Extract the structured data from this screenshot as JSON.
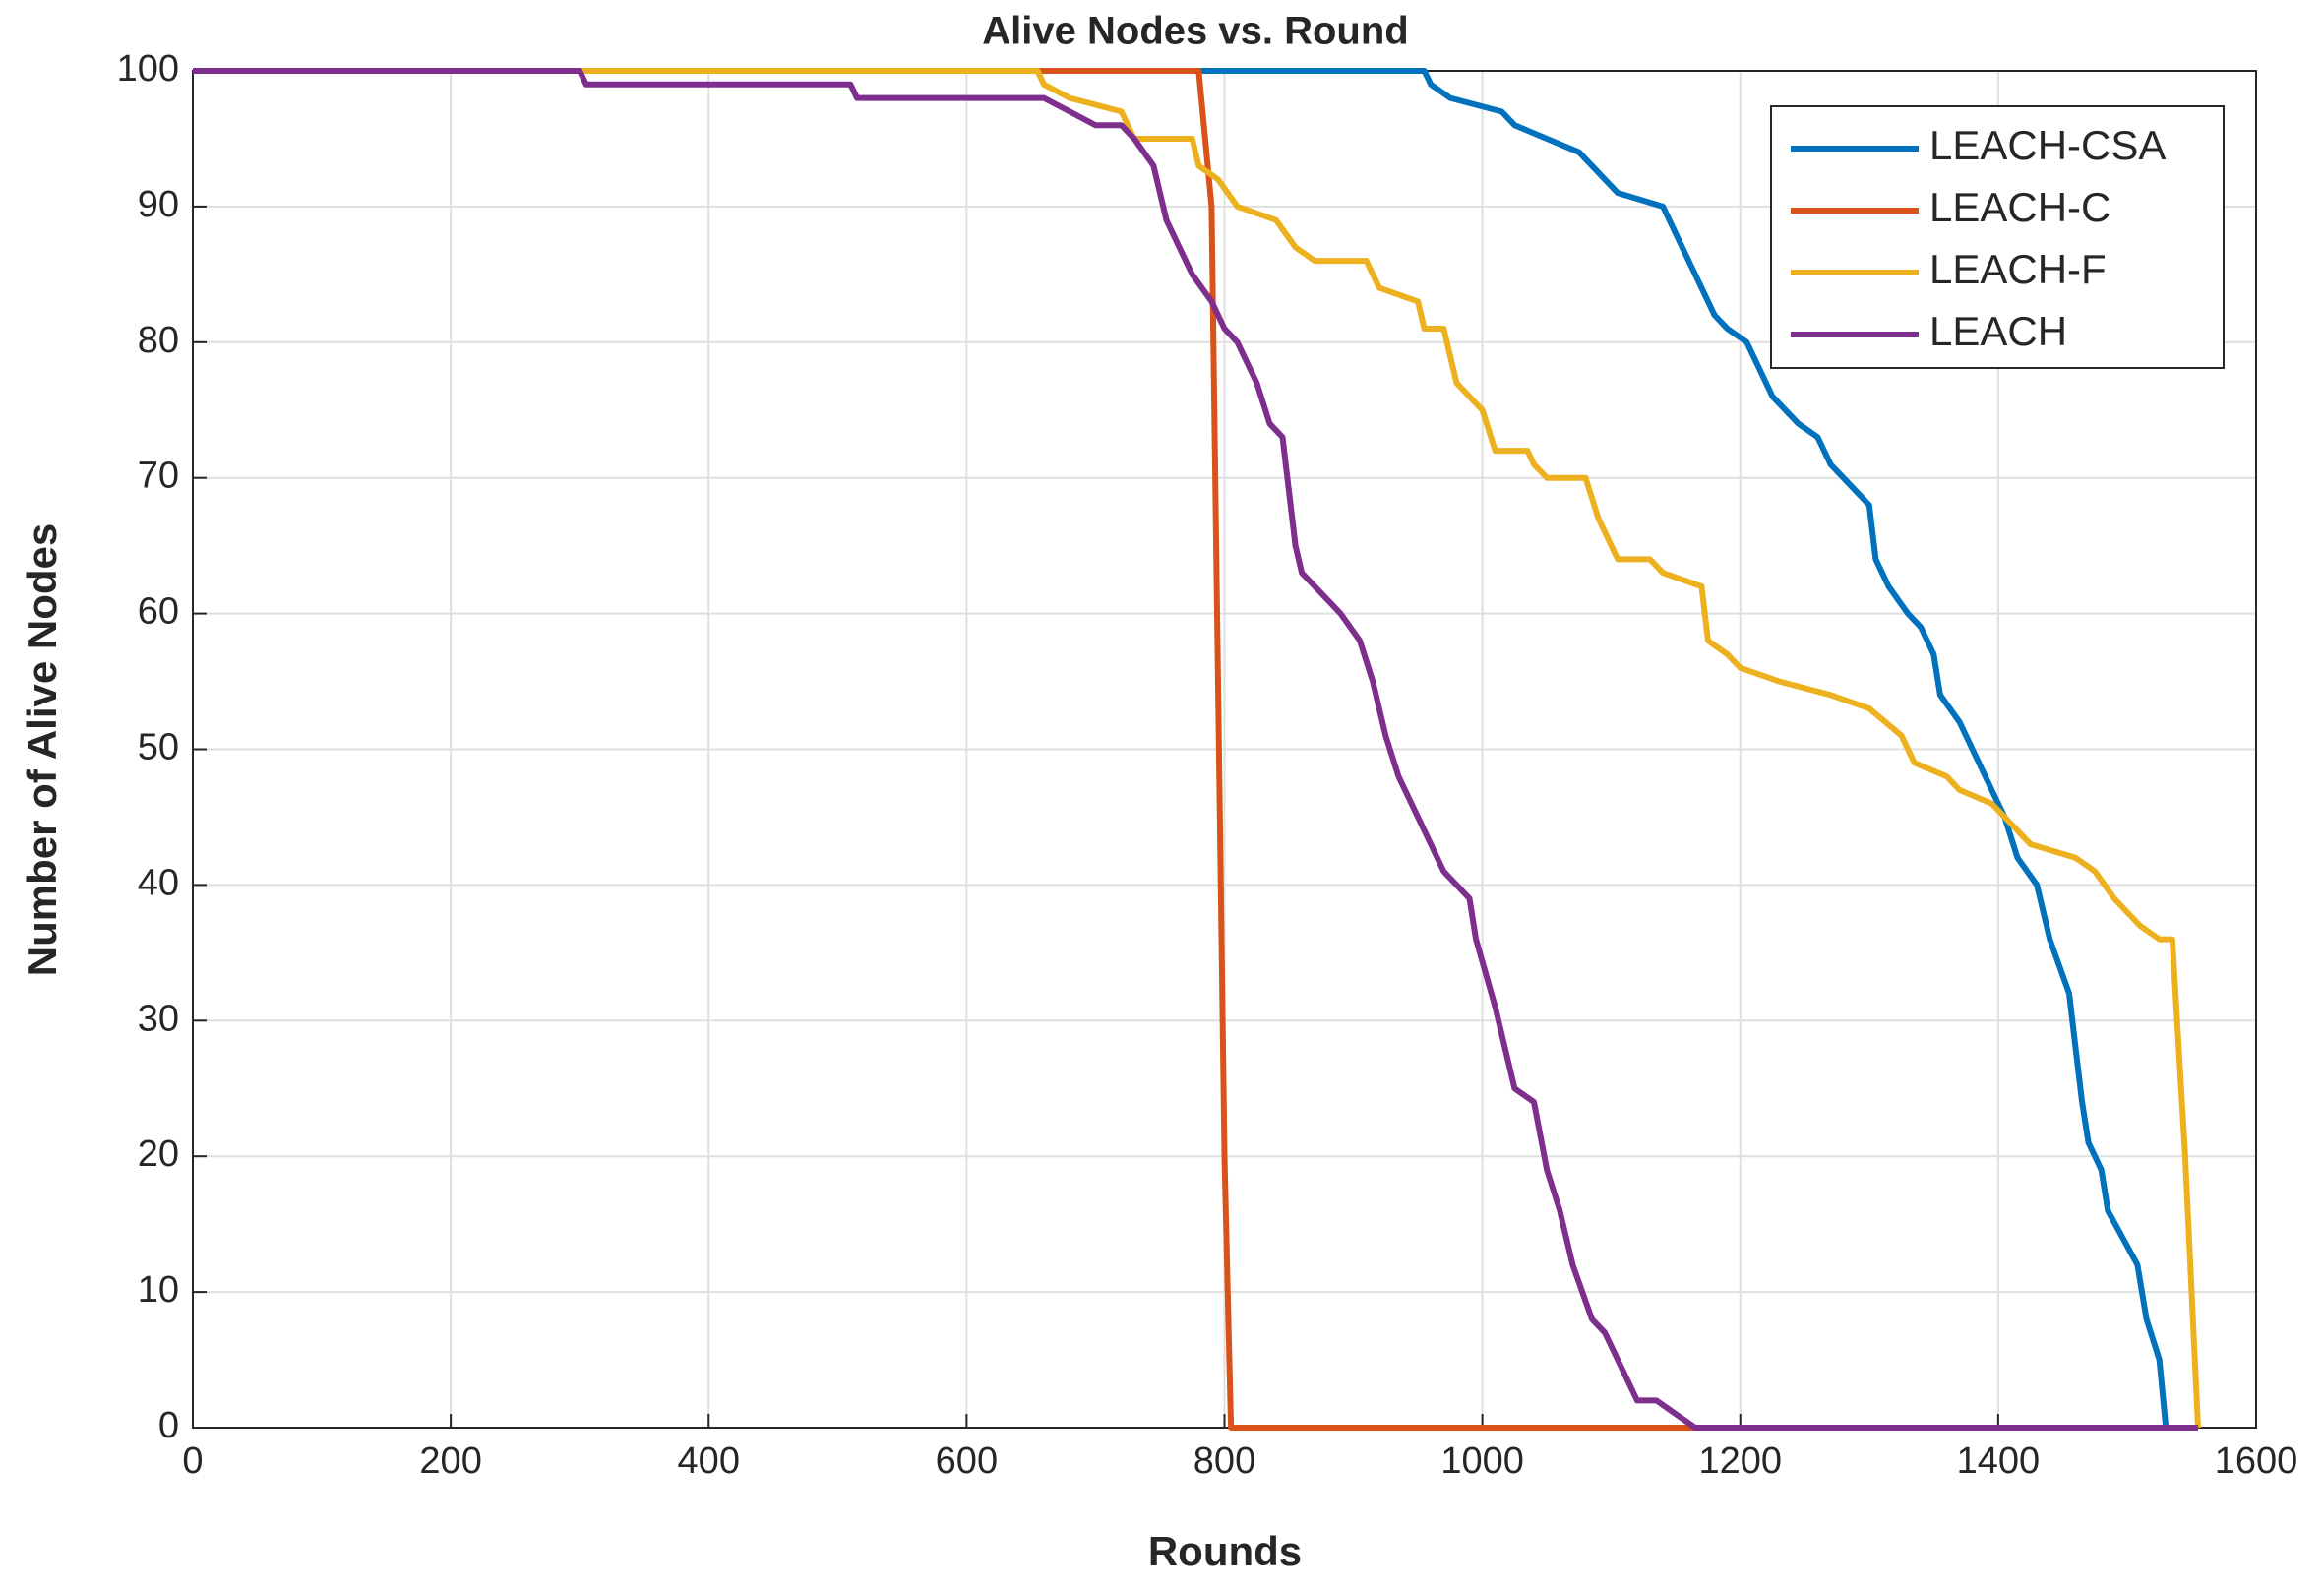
{
  "chart_data": {
    "type": "line",
    "title": "Alive Nodes vs. Round",
    "xlabel": "Rounds",
    "ylabel": "Number of Alive Nodes",
    "xlim": [
      0,
      1600
    ],
    "xticks": [
      0,
      200,
      400,
      600,
      800,
      1000,
      1200,
      1400,
      1600
    ],
    "ylim": [
      0,
      100
    ],
    "yticks": [
      0,
      10,
      20,
      30,
      40,
      50,
      60,
      70,
      80,
      90,
      100
    ],
    "grid": true,
    "legend": "upper right",
    "series": [
      {
        "name": "LEACH-CSA",
        "color": "#0072bd",
        "x": [
          0,
          955,
          960,
          975,
          1015,
          1025,
          1050,
          1075,
          1085,
          1095,
          1105,
          1140,
          1150,
          1160,
          1170,
          1180,
          1190,
          1205,
          1215,
          1225,
          1245,
          1260,
          1270,
          1290,
          1300,
          1305,
          1315,
          1330,
          1340,
          1350,
          1355,
          1370,
          1380,
          1395,
          1405,
          1415,
          1430,
          1440,
          1455,
          1460,
          1465,
          1470,
          1480,
          1485,
          1508,
          1515,
          1525,
          1530
        ],
        "values": [
          100,
          100,
          99,
          98,
          97,
          96,
          95,
          94,
          93,
          92,
          91,
          90,
          88,
          86,
          84,
          82,
          81,
          80,
          78,
          76,
          74,
          73,
          71,
          69,
          68,
          64,
          62,
          60,
          59,
          57,
          54,
          52,
          50,
          47,
          45,
          42,
          40,
          36,
          32,
          28,
          24,
          21,
          19,
          16,
          12,
          8,
          5,
          0
        ]
      },
      {
        "name": "LEACH-C",
        "color": "#d95319",
        "x": [
          0,
          780,
          790,
          800,
          805,
          1165
        ],
        "values": [
          100,
          100,
          90,
          20,
          0,
          0
        ]
      },
      {
        "name": "LEACH-F",
        "color": "#edb120",
        "x": [
          0,
          655,
          660,
          680,
          720,
          730,
          775,
          780,
          795,
          810,
          840,
          855,
          870,
          910,
          920,
          950,
          955,
          970,
          980,
          1000,
          1010,
          1035,
          1040,
          1050,
          1080,
          1090,
          1105,
          1130,
          1140,
          1170,
          1175,
          1190,
          1200,
          1230,
          1270,
          1300,
          1325,
          1335,
          1360,
          1370,
          1395,
          1415,
          1425,
          1460,
          1475,
          1490,
          1510,
          1525,
          1535,
          1545,
          1555
        ],
        "values": [
          100,
          100,
          99,
          98,
          97,
          95,
          95,
          93,
          92,
          90,
          89,
          87,
          86,
          86,
          84,
          83,
          81,
          81,
          77,
          75,
          72,
          72,
          71,
          70,
          70,
          67,
          64,
          64,
          63,
          62,
          58,
          57,
          56,
          55,
          54,
          53,
          51,
          49,
          48,
          47,
          46,
          44,
          43,
          42,
          41,
          39,
          37,
          36,
          36,
          20,
          0
        ]
      },
      {
        "name": "LEACH",
        "color": "#7e2f8e",
        "x": [
          0,
          300,
          305,
          510,
          515,
          660,
          680,
          700,
          720,
          730,
          745,
          755,
          775,
          790,
          800,
          810,
          825,
          835,
          845,
          855,
          860,
          880,
          890,
          905,
          915,
          925,
          935,
          950,
          960,
          970,
          990,
          995,
          1010,
          1025,
          1040,
          1050,
          1060,
          1070,
          1085,
          1095,
          1110,
          1120,
          1135,
          1165,
          1555
        ],
        "values": [
          100,
          100,
          99,
          99,
          98,
          98,
          97,
          96,
          96,
          95,
          93,
          89,
          85,
          83,
          81,
          80,
          77,
          74,
          73,
          65,
          63,
          61,
          60,
          58,
          55,
          51,
          48,
          45,
          43,
          41,
          39,
          36,
          31,
          25,
          24,
          19,
          16,
          12,
          8,
          7,
          4,
          2,
          2,
          0,
          0
        ]
      }
    ]
  }
}
